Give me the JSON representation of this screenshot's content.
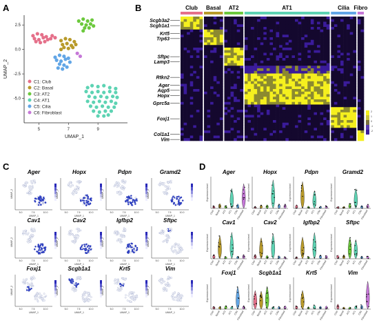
{
  "panels": {
    "a": "A",
    "b": "B",
    "c": "C",
    "d": "D"
  },
  "colors": {
    "club": "#e5708a",
    "basal": "#b89a2a",
    "at2": "#6cc93d",
    "at1": "#5dd3b3",
    "cilia": "#62a6e6",
    "fibro": "#c678d8",
    "heat_high": "#f5f01e",
    "heat_low": "#3a1b9a",
    "heat_dark": "#14082e"
  },
  "umap_panel": {
    "xlabel": "UMAP_1",
    "ylabel": "UMAP_2",
    "xticks": [
      "5",
      "7",
      "9"
    ],
    "yticks": [
      "2.5",
      "0.0",
      "-2.5",
      "-5.0"
    ],
    "legend": [
      {
        "label": "C1: Club",
        "color": "#e5708a"
      },
      {
        "label": "C2: Basal",
        "color": "#b89a2a"
      },
      {
        "label": "C3: AT2",
        "color": "#6cc93d"
      },
      {
        "label": "C4: AT1",
        "color": "#5dd3b3"
      },
      {
        "label": "C5: Cilia",
        "color": "#62a6e6"
      },
      {
        "label": "C6: Fibroblast",
        "color": "#c678d8"
      }
    ]
  },
  "chart_data": {
    "type": "scatter",
    "xlabel": "UMAP_1",
    "ylabel": "UMAP_2",
    "xlim": [
      4,
      11
    ],
    "ylim": [
      -7.5,
      3.5
    ],
    "series": [
      {
        "name": "C1: Club",
        "points": [
          [
            4.6,
            1.4
          ],
          [
            4.9,
            1.6
          ],
          [
            5.2,
            1.5
          ],
          [
            5.5,
            1.3
          ],
          [
            4.7,
            1.1
          ],
          [
            5.0,
            1.0
          ],
          [
            5.3,
            1.2
          ],
          [
            5.6,
            1.0
          ],
          [
            5.8,
            1.1
          ],
          [
            5.4,
            0.8
          ],
          [
            5.1,
            0.7
          ],
          [
            4.8,
            0.8
          ],
          [
            5.9,
            1.4
          ],
          [
            6.1,
            1.2
          ]
        ]
      },
      {
        "name": "C2: Basal",
        "points": [
          [
            6.5,
            0.9
          ],
          [
            6.8,
            1.1
          ],
          [
            7.1,
            1.0
          ],
          [
            7.4,
            0.8
          ],
          [
            6.6,
            0.5
          ],
          [
            6.9,
            0.6
          ],
          [
            7.2,
            0.4
          ],
          [
            6.7,
            0.2
          ],
          [
            7.0,
            0.1
          ],
          [
            7.3,
            0.2
          ],
          [
            6.5,
            0.0
          ],
          [
            7.5,
            0.5
          ]
        ]
      },
      {
        "name": "C3: AT2",
        "points": [
          [
            7.7,
            2.9
          ],
          [
            8.0,
            3.1
          ],
          [
            8.3,
            2.9
          ],
          [
            8.6,
            3.0
          ],
          [
            7.9,
            2.6
          ],
          [
            8.2,
            2.5
          ],
          [
            8.5,
            2.6
          ],
          [
            8.1,
            2.2
          ],
          [
            8.4,
            2.2
          ],
          [
            8.7,
            2.4
          ],
          [
            8.0,
            1.9
          ]
        ]
      },
      {
        "name": "C4: AT1",
        "points": [
          [
            8.3,
            -3.9
          ],
          [
            8.6,
            -3.7
          ],
          [
            9.0,
            -3.8
          ],
          [
            9.4,
            -3.7
          ],
          [
            9.8,
            -3.9
          ],
          [
            10.2,
            -4.0
          ],
          [
            8.2,
            -4.3
          ],
          [
            8.6,
            -4.4
          ],
          [
            9.0,
            -4.3
          ],
          [
            9.4,
            -4.4
          ],
          [
            9.8,
            -4.3
          ],
          [
            10.2,
            -4.4
          ],
          [
            8.4,
            -4.8
          ],
          [
            8.8,
            -4.9
          ],
          [
            9.2,
            -4.8
          ],
          [
            9.6,
            -4.9
          ],
          [
            10.0,
            -4.8
          ],
          [
            10.3,
            -4.9
          ],
          [
            8.3,
            -5.3
          ],
          [
            8.7,
            -5.4
          ],
          [
            9.1,
            -5.3
          ],
          [
            9.5,
            -5.4
          ],
          [
            9.9,
            -5.3
          ],
          [
            10.2,
            -5.5
          ],
          [
            8.5,
            -5.8
          ],
          [
            8.9,
            -5.9
          ],
          [
            9.3,
            -5.8
          ],
          [
            9.7,
            -5.9
          ],
          [
            10.1,
            -5.9
          ],
          [
            8.7,
            -6.3
          ],
          [
            9.1,
            -6.4
          ],
          [
            9.5,
            -6.3
          ],
          [
            9.9,
            -6.3
          ],
          [
            9.0,
            -6.8
          ],
          [
            9.4,
            -6.8
          ],
          [
            9.7,
            -6.7
          ]
        ]
      },
      {
        "name": "C5: Cilia",
        "points": [
          [
            6.1,
            -0.8
          ],
          [
            6.4,
            -0.6
          ],
          [
            6.7,
            -0.7
          ],
          [
            7.0,
            -0.9
          ],
          [
            6.2,
            -1.1
          ],
          [
            6.5,
            -1.2
          ],
          [
            6.8,
            -1.0
          ],
          [
            7.1,
            -1.3
          ],
          [
            6.4,
            -1.5
          ],
          [
            6.7,
            -1.6
          ],
          [
            6.3,
            -1.9
          ],
          [
            6.6,
            -2.0
          ],
          [
            6.9,
            -1.8
          ]
        ]
      },
      {
        "name": "C6: Fibroblast",
        "points": [
          [
            7.6,
            -0.4
          ],
          [
            7.8,
            -0.7
          ]
        ]
      }
    ]
  },
  "heatmap": {
    "clusters": [
      {
        "label": "Club",
        "color": "#e5708a",
        "cols": 7
      },
      {
        "label": "Basal",
        "color": "#b89a2a",
        "cols": 6
      },
      {
        "label": "AT2",
        "color": "#6cc93d",
        "cols": 6
      },
      {
        "label": "AT1",
        "color": "#5dd3b3",
        "cols": 27
      },
      {
        "label": "Cilia",
        "color": "#62a6e6",
        "cols": 8
      },
      {
        "label": "Fibro",
        "color": "#c678d8",
        "cols": 2
      }
    ],
    "gene_labels": [
      {
        "name": "Scgb3a2",
        "row": 1
      },
      {
        "name": "Scgb1a1",
        "row": 3
      },
      {
        "name": "Krt5",
        "row": 6
      },
      {
        "name": "Trp63",
        "row": 8
      },
      {
        "name": "Sftpc",
        "row": 15
      },
      {
        "name": "Lamp3",
        "row": 17
      },
      {
        "name": "Rtkn2",
        "row": 23
      },
      {
        "name": "Ager",
        "row": 26
      },
      {
        "name": "Aqp5",
        "row": 28
      },
      {
        "name": "Hopx",
        "row": 30
      },
      {
        "name": "Gprc5a",
        "row": 33
      },
      {
        "name": "Foxj1",
        "row": 39
      },
      {
        "name": "Col1a1",
        "row": 45
      },
      {
        "name": "Vim",
        "row": 47
      }
    ],
    "legend_ticks": [
      "2",
      "1",
      "0",
      "-1",
      "-2"
    ]
  },
  "feature_plots": {
    "genes": [
      "Ager",
      "Hopx",
      "Pdpn",
      "Gramd2",
      "Cav1",
      "Cav2",
      "Igfbp2",
      "Sftpc",
      "Foxj1",
      "Scgb1a1",
      "Krt5",
      "Vim"
    ],
    "xlabel": "UMAP_1",
    "ylabel": "UMAP_2",
    "xticks": [
      "5.0",
      "7.5",
      "10.0"
    ]
  },
  "violin_plots": {
    "genes": [
      "Ager",
      "Hopx",
      "Pdpn",
      "Gramd2",
      "Cav1",
      "Cav2",
      "Igfbp2",
      "Sftpc",
      "Foxj1",
      "Scgb1a1",
      "Krt5",
      "Vim"
    ],
    "ylabel": "Expression level",
    "categories": [
      "Club",
      "Basal",
      "AT2",
      "AT1",
      "Cilia",
      "Fibroblast"
    ]
  }
}
